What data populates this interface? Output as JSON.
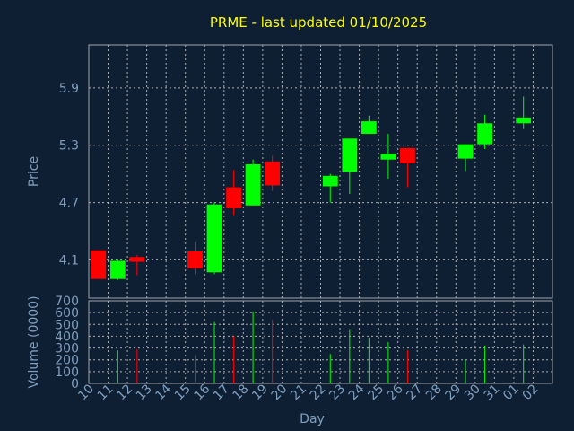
{
  "chart_data": {
    "type": "candlestick",
    "title": "PRME - last updated 01/10/2025",
    "xlabel": "Day",
    "price_panel": {
      "ylabel": "Price",
      "yticks": [
        "4.1",
        "4.7",
        "5.3",
        "5.9"
      ],
      "ylim": [
        3.7,
        6.35
      ]
    },
    "volume_panel": {
      "ylabel": "Volume (0000)",
      "yticks": [
        "0",
        "100",
        "200",
        "300",
        "400",
        "500",
        "600",
        "700"
      ],
      "ylim": [
        0,
        700
      ]
    },
    "x_tick_labels": [
      "10",
      "11",
      "12",
      "13",
      "14",
      "15",
      "16",
      "17",
      "18",
      "19",
      "20",
      "21",
      "22",
      "23",
      "24",
      "25",
      "26",
      "27",
      "28",
      "29",
      "30",
      "31",
      "01",
      "02"
    ],
    "up_color": "#00ff00",
    "down_color": "#ff0000",
    "candles": [
      {
        "day": "10",
        "open": 4.2,
        "close": 3.9,
        "high": 4.2,
        "low": 3.9,
        "volume": 0
      },
      {
        "day": "11",
        "open": 3.9,
        "close": 4.09,
        "high": 4.11,
        "low": 3.89,
        "volume": 280
      },
      {
        "day": "12",
        "open": 4.13,
        "close": 4.08,
        "high": 4.15,
        "low": 3.94,
        "volume": 290
      },
      {
        "day": "15",
        "open": 4.19,
        "close": 4.01,
        "high": 4.29,
        "low": 3.95,
        "volume": 240
      },
      {
        "day": "16",
        "open": 3.97,
        "close": 4.68,
        "high": 4.7,
        "low": 3.95,
        "volume": 520
      },
      {
        "day": "17",
        "open": 4.86,
        "close": 4.64,
        "high": 5.04,
        "low": 4.57,
        "volume": 400
      },
      {
        "day": "18",
        "open": 4.67,
        "close": 5.1,
        "high": 5.15,
        "low": 4.67,
        "volume": 610
      },
      {
        "day": "19",
        "open": 5.13,
        "close": 4.88,
        "high": 5.19,
        "low": 4.82,
        "volume": 540
      },
      {
        "day": "22",
        "open": 4.87,
        "close": 4.98,
        "high": 5.0,
        "low": 4.7,
        "volume": 250
      },
      {
        "day": "23",
        "open": 5.02,
        "close": 5.37,
        "high": 5.37,
        "low": 4.79,
        "volume": 460
      },
      {
        "day": "24",
        "open": 5.42,
        "close": 5.55,
        "high": 5.61,
        "low": 5.42,
        "volume": 390
      },
      {
        "day": "25",
        "open": 5.15,
        "close": 5.21,
        "high": 5.42,
        "low": 4.95,
        "volume": 350
      },
      {
        "day": "26",
        "open": 5.27,
        "close": 5.11,
        "high": 5.27,
        "low": 4.86,
        "volume": 280
      },
      {
        "day": "29",
        "open": 5.16,
        "close": 5.31,
        "high": 5.31,
        "low": 5.03,
        "volume": 200
      },
      {
        "day": "30",
        "open": 5.31,
        "close": 5.53,
        "high": 5.62,
        "low": 5.26,
        "volume": 320
      },
      {
        "day": "01",
        "open": 5.53,
        "close": 5.59,
        "high": 5.81,
        "low": 5.47,
        "volume": 330
      }
    ]
  }
}
